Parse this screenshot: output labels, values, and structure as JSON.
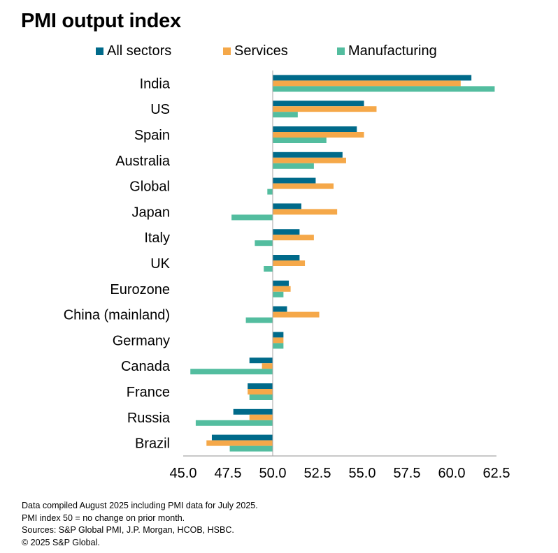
{
  "chart_data": {
    "type": "bar",
    "orientation": "horizontal",
    "title": "PMI output index",
    "xlabel": "",
    "ylabel": "",
    "baseline": 50.0,
    "xlim": [
      45.0,
      62.5
    ],
    "xticks": [
      "45.0",
      "47.5",
      "50.0",
      "52.5",
      "55.0",
      "57.5",
      "60.0",
      "62.5"
    ],
    "xtick_values": [
      45.0,
      47.5,
      50.0,
      52.5,
      55.0,
      57.5,
      60.0,
      62.5
    ],
    "grid": false,
    "legend_position": "top",
    "categories": [
      "India",
      "US",
      "Spain",
      "Australia",
      "Global",
      "Japan",
      "Italy",
      "UK",
      "Eurozone",
      "China (mainland)",
      "Germany",
      "Canada",
      "France",
      "Russia",
      "Brazil"
    ],
    "series": [
      {
        "name": "All sectors",
        "color": "#006a8a",
        "values": [
          61.1,
          55.1,
          54.7,
          53.9,
          52.4,
          51.6,
          51.5,
          51.5,
          50.9,
          50.8,
          50.6,
          48.7,
          48.6,
          47.8,
          46.6
        ]
      },
      {
        "name": "Services",
        "color": "#f5a849",
        "values": [
          60.5,
          55.8,
          55.1,
          54.1,
          53.4,
          53.6,
          52.3,
          51.8,
          51.0,
          52.6,
          50.6,
          49.4,
          48.6,
          48.7,
          46.3
        ]
      },
      {
        "name": "Manufacturing",
        "color": "#53bd9f",
        "values": [
          62.4,
          51.4,
          53.0,
          52.3,
          49.7,
          47.7,
          49.0,
          49.5,
          50.6,
          48.5,
          50.6,
          45.4,
          48.7,
          45.7,
          47.6
        ]
      }
    ]
  },
  "footer": {
    "lines": [
      "Data compiled August 2025 including PMI data for July 2025.",
      "PMI index 50 = no change on prior month.",
      "Sources: S&P Global PMI, J.P. Morgan, HCOB, HSBC.",
      "© 2025 S&P Global."
    ]
  },
  "colors": {
    "axis": "#a6a6a6",
    "text": "#000000"
  }
}
